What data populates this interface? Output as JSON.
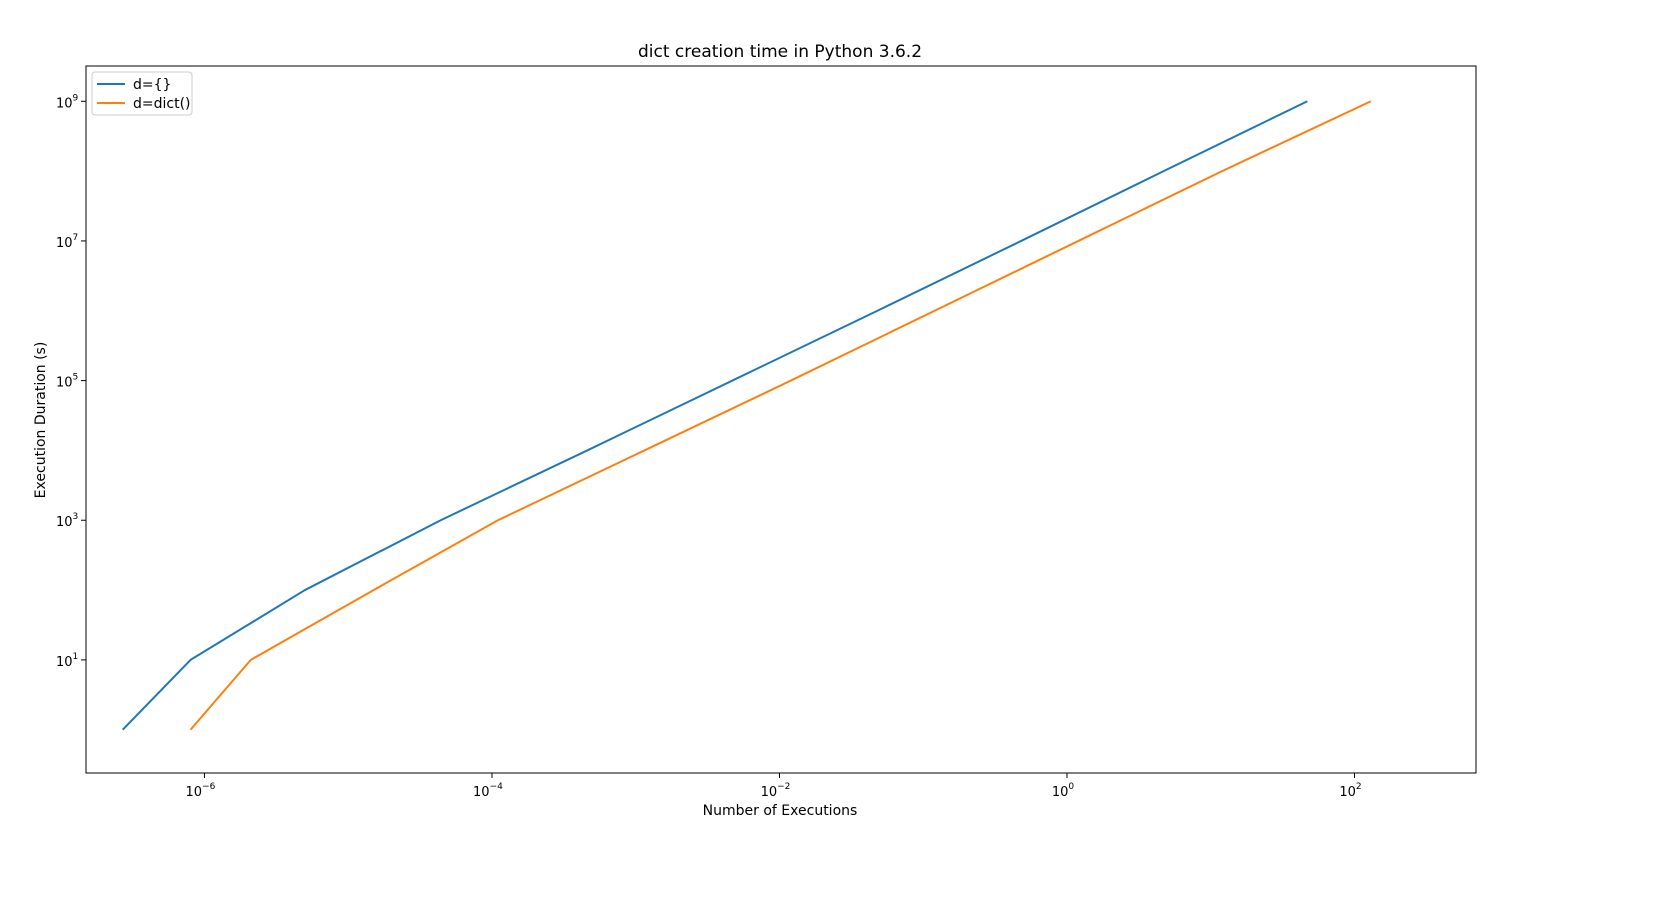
{
  "chart_data": {
    "type": "line",
    "title": "dict creation time in Python 3.6.2",
    "xlabel": "Number of Executions",
    "ylabel": "Execution Duration (s)",
    "xscale": "log",
    "yscale": "log",
    "xlim": [
      1.5e-07,
      700
    ],
    "ylim": [
      0.24,
      3200000000.0
    ],
    "xticks": [
      {
        "value": 1e-06,
        "base": "10",
        "exp": "−6"
      },
      {
        "value": 0.0001,
        "base": "10",
        "exp": "−4"
      },
      {
        "value": 0.01,
        "base": "10",
        "exp": "−2"
      },
      {
        "value": 1,
        "base": "10",
        "exp": "0"
      },
      {
        "value": 100,
        "base": "10",
        "exp": "2"
      }
    ],
    "yticks": [
      {
        "value": 10,
        "base": "10",
        "exp": "1"
      },
      {
        "value": 1000,
        "base": "10",
        "exp": "3"
      },
      {
        "value": 100000,
        "base": "10",
        "exp": "5"
      },
      {
        "value": 10000000,
        "base": "10",
        "exp": "7"
      },
      {
        "value": 1000000000,
        "base": "10",
        "exp": "9"
      }
    ],
    "grid": false,
    "legend_position": "top-left",
    "series": [
      {
        "name": "d={}",
        "color": "#1f77b4",
        "points": [
          [
            2.7e-07,
            1
          ],
          [
            8e-07,
            10
          ],
          [
            5e-06,
            100
          ],
          [
            4.4e-05,
            1000
          ],
          [
            0.00046,
            10000
          ],
          [
            0.0047,
            100000
          ],
          [
            0.048,
            1000000
          ],
          [
            0.48,
            10000000
          ],
          [
            4.7,
            100000000
          ],
          [
            47,
            1000000000
          ]
        ]
      },
      {
        "name": "d=dict()",
        "color": "#ff7f0e",
        "points": [
          [
            8e-07,
            1
          ],
          [
            2.1e-06,
            10
          ],
          [
            1.5e-05,
            100
          ],
          [
            0.00011,
            1000
          ],
          [
            0.00115,
            10000
          ],
          [
            0.012,
            100000
          ],
          [
            0.12,
            1000000
          ],
          [
            1.2,
            10000000
          ],
          [
            12,
            100000000
          ],
          [
            130,
            1000000000
          ]
        ]
      }
    ]
  }
}
